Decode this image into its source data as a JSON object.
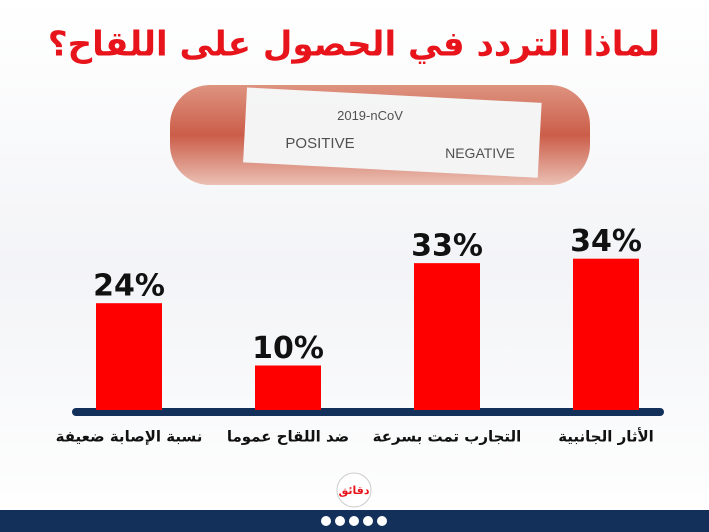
{
  "chart_data": {
    "type": "bar",
    "title": "لماذا التردد في الحصول على اللقاح؟",
    "categories": [
      "نسبة الإصابة ضعيفة",
      "ضد اللقاح عموما",
      "التجارب تمت بسرعة",
      "الأثار الجانبية"
    ],
    "values": [
      24,
      10,
      33,
      34
    ],
    "value_labels": [
      "24%",
      "10%",
      "33%",
      "34%"
    ],
    "color": "#ff0000",
    "background_texts": [
      "2019-nCoV",
      "POSITIVE",
      "NEGATIVE"
    ],
    "logo": "دقائق"
  }
}
